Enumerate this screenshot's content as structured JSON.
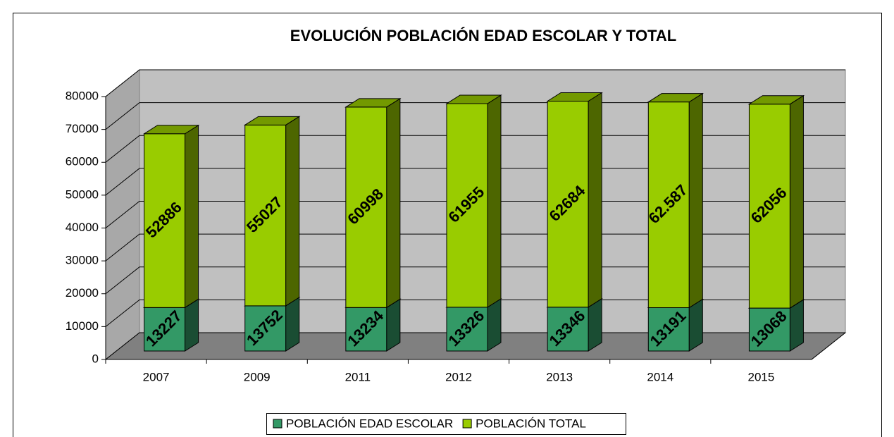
{
  "chart_data": {
    "type": "bar3d_stacked",
    "title": "EVOLUCIÓN POBLACIÓN EDAD ESCOLAR Y TOTAL",
    "categories": [
      "2007",
      "2009",
      "2011",
      "2012",
      "2013",
      "2014",
      "2015"
    ],
    "series": [
      {
        "name": "POBLACIÓN EDAD ESCOLAR",
        "color": "#339966",
        "values": [
          13227,
          13752,
          13234,
          13326,
          13346,
          13191,
          13068
        ]
      },
      {
        "name": "POBLACIÓN TOTAL",
        "color": "#99cc00",
        "values": [
          52886,
          55027,
          60998,
          61955,
          62684,
          62587,
          62056
        ],
        "value_labels": [
          "52886",
          "55027",
          "60998",
          "61955",
          "62684",
          "62.587",
          "62056"
        ]
      }
    ],
    "ylim": [
      0,
      80000
    ],
    "yticks": [
      0,
      10000,
      20000,
      30000,
      40000,
      50000,
      60000,
      70000,
      80000
    ],
    "grid": true,
    "legend": "bottom"
  }
}
